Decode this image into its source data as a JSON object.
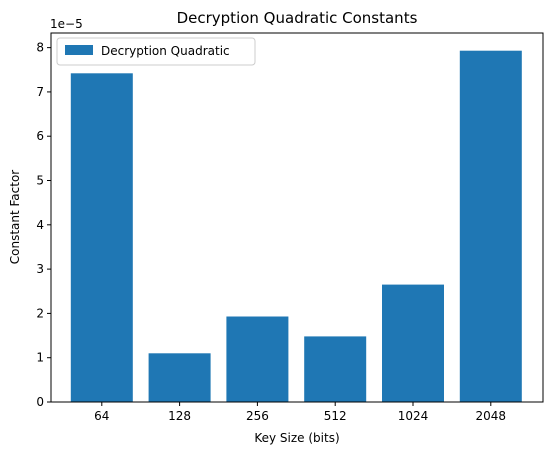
{
  "chart_data": {
    "type": "bar",
    "title": "Decryption Quadratic Constants",
    "xlabel": "Key Size (bits)",
    "ylabel": "Constant Factor",
    "y_offset_text": "1e−5",
    "categories": [
      "64",
      "128",
      "256",
      "512",
      "1024",
      "2048"
    ],
    "series": [
      {
        "name": "Decryption Quadratic",
        "values": [
          7.42e-05,
          1.1e-05,
          1.93e-05,
          1.48e-05,
          2.65e-05,
          7.93e-05
        ]
      }
    ],
    "ylim": [
      0,
      8.33e-05
    ],
    "yticks": [
      0,
      1,
      2,
      3,
      4,
      5,
      6,
      7,
      8
    ],
    "ytick_scale": 1e-05,
    "bar_color": "#1f77b4",
    "grid": false,
    "legend_position": "top-left"
  }
}
